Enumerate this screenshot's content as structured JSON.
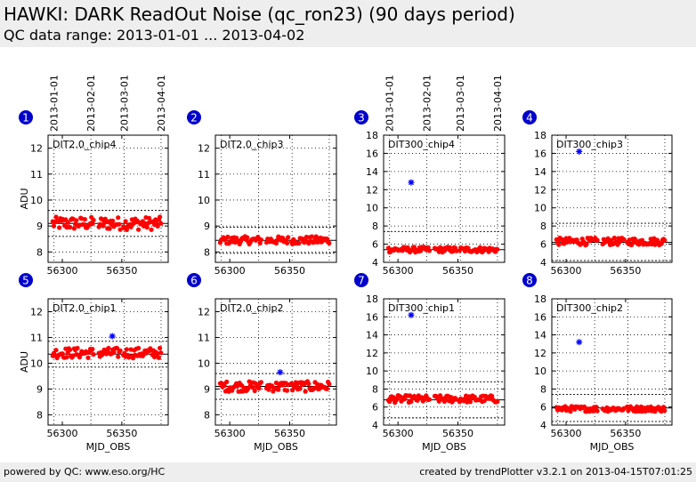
{
  "header": {
    "title": "HAWKI: DARK ReadOut Noise (qc_ron23) (90 days period)",
    "subtitle": "QC data range: 2013-01-01 ... 2013-04-02"
  },
  "footer": {
    "left": "powered by QC: www.eso.org/HC",
    "right": "created by trendPlotter v3.2.1 on 2013-04-15T07:01:25"
  },
  "colors": {
    "points": "#ff0000",
    "outliers": "#0000ff",
    "badge": "#0000cc",
    "header_bg": "#eeeeee"
  },
  "chart_data": [
    {
      "type": "scatter",
      "panel": "1",
      "label": "DIT2.0_chip4",
      "xlim": [
        56288,
        56389
      ],
      "ylim": [
        7.6,
        12.5
      ],
      "yticks": [
        8,
        9,
        10,
        11,
        12
      ],
      "xticks": [
        56300,
        56350
      ],
      "ylabel": "ADU",
      "xlabel": "",
      "mean": 9.1,
      "thresholds": [
        8.6,
        9.6
      ],
      "points_summary": {
        "x_range": [
          56292,
          56383
        ],
        "y_mean": 9.1,
        "y_spread": 0.25,
        "gaps": [
          [
            56327,
            56330
          ],
          [
            56349,
            56351
          ]
        ]
      },
      "outliers": [],
      "date_ticks": [
        "2013-01-01",
        "2013-02-01",
        "2013-03-01",
        "2013-04-01"
      ]
    },
    {
      "type": "scatter",
      "panel": "2",
      "label": "DIT2.0_chip3",
      "xlim": [
        56288,
        56389
      ],
      "ylim": [
        7.6,
        12.5
      ],
      "yticks": [
        8,
        9,
        10,
        11,
        12
      ],
      "xticks": [
        56300,
        56350
      ],
      "ylabel": "",
      "xlabel": "",
      "mean": 8.45,
      "thresholds": [
        7.95,
        8.95
      ],
      "points_summary": {
        "x_range": [
          56292,
          56383
        ],
        "y_mean": 8.45,
        "y_spread": 0.15,
        "gaps": [
          [
            56327,
            56330
          ],
          [
            56349,
            56351
          ]
        ]
      },
      "outliers": [],
      "date_ticks": []
    },
    {
      "type": "scatter",
      "panel": "3",
      "label": "DIT300_chip4",
      "xlim": [
        56288,
        56389
      ],
      "ylim": [
        4,
        18
      ],
      "yticks": [
        4,
        6,
        8,
        10,
        12,
        14,
        16,
        18
      ],
      "xticks": [
        56300,
        56350
      ],
      "ylabel": "",
      "xlabel": "",
      "mean": 5.4,
      "thresholds": [
        3.9,
        7.4
      ],
      "points_summary": {
        "x_range": [
          56292,
          56383
        ],
        "y_mean": 5.4,
        "y_spread": 0.3,
        "gaps": [
          [
            56327,
            56330
          ],
          [
            56349,
            56351
          ]
        ]
      },
      "outliers": [
        [
          56311,
          12.8
        ]
      ],
      "date_ticks": [
        "2013-01-01",
        "2013-02-01",
        "2013-03-01",
        "2013-04-01"
      ]
    },
    {
      "type": "scatter",
      "panel": "4",
      "label": "DIT300_chip3",
      "xlim": [
        56288,
        56389
      ],
      "ylim": [
        4,
        18
      ],
      "yticks": [
        4,
        6,
        8,
        10,
        12,
        14,
        16,
        18
      ],
      "xticks": [
        56300,
        56350
      ],
      "ylabel": "",
      "xlabel": "",
      "mean": 6.2,
      "thresholds": [
        4.2,
        8.3
      ],
      "points_summary": {
        "x_range": [
          56292,
          56383
        ],
        "y_mean": 6.3,
        "y_spread": 0.4,
        "gaps": [
          [
            56327,
            56330
          ],
          [
            56349,
            56351
          ]
        ]
      },
      "outliers": [
        [
          56311,
          16.2
        ]
      ],
      "date_ticks": []
    },
    {
      "type": "scatter",
      "panel": "5",
      "label": "DIT2.0_chip1",
      "xlim": [
        56288,
        56389
      ],
      "ylim": [
        7.6,
        12.5
      ],
      "yticks": [
        8,
        9,
        10,
        11,
        12
      ],
      "xticks": [
        56300,
        56350
      ],
      "ylabel": "ADU",
      "xlabel": "MJD_OBS",
      "mean": 10.35,
      "thresholds": [
        9.85,
        10.85
      ],
      "points_summary": {
        "x_range": [
          56292,
          56383
        ],
        "y_mean": 10.4,
        "y_spread": 0.2,
        "gaps": [
          [
            56327,
            56330
          ],
          [
            56349,
            56351
          ]
        ]
      },
      "outliers": [
        [
          56342,
          11.05
        ]
      ],
      "date_ticks": []
    },
    {
      "type": "scatter",
      "panel": "6",
      "label": "DIT2.0_chip2",
      "xlim": [
        56288,
        56389
      ],
      "ylim": [
        7.6,
        12.5
      ],
      "yticks": [
        8,
        9,
        10,
        11,
        12
      ],
      "xticks": [
        56300,
        56350
      ],
      "ylabel": "",
      "xlabel": "MJD_OBS",
      "mean": 9.1,
      "thresholds": [
        8.6,
        9.6
      ],
      "points_summary": {
        "x_range": [
          56292,
          56383
        ],
        "y_mean": 9.1,
        "y_spread": 0.2,
        "gaps": [
          [
            56327,
            56330
          ],
          [
            56349,
            56351
          ]
        ]
      },
      "outliers": [
        [
          56342,
          9.65
        ]
      ],
      "date_ticks": []
    },
    {
      "type": "scatter",
      "panel": "7",
      "label": "DIT300_chip1",
      "xlim": [
        56288,
        56389
      ],
      "ylim": [
        4,
        18
      ],
      "yticks": [
        4,
        6,
        8,
        10,
        12,
        14,
        16,
        18
      ],
      "xticks": [
        56300,
        56350
      ],
      "ylabel": "",
      "xlabel": "MJD_OBS",
      "mean": 6.8,
      "thresholds": [
        4.8,
        8.8
      ],
      "points_summary": {
        "x_range": [
          56292,
          56383
        ],
        "y_mean": 6.9,
        "y_spread": 0.4,
        "gaps": [
          [
            56327,
            56330
          ],
          [
            56349,
            56351
          ]
        ]
      },
      "outliers": [
        [
          56311,
          16.2
        ]
      ],
      "date_ticks": []
    },
    {
      "type": "scatter",
      "panel": "8",
      "label": "DIT300_chip2",
      "xlim": [
        56288,
        56389
      ],
      "ylim": [
        4,
        18
      ],
      "yticks": [
        4,
        6,
        8,
        10,
        12,
        14,
        16,
        18
      ],
      "xticks": [
        56300,
        56350
      ],
      "ylabel": "",
      "xlabel": "MJD_OBS",
      "mean": 5.9,
      "thresholds": [
        4.4,
        7.4
      ],
      "points_summary": {
        "x_range": [
          56292,
          56383
        ],
        "y_mean": 5.8,
        "y_spread": 0.3,
        "gaps": [
          [
            56327,
            56330
          ],
          [
            56349,
            56351
          ]
        ]
      },
      "outliers": [
        [
          56311,
          13.2
        ]
      ],
      "date_ticks": []
    }
  ]
}
